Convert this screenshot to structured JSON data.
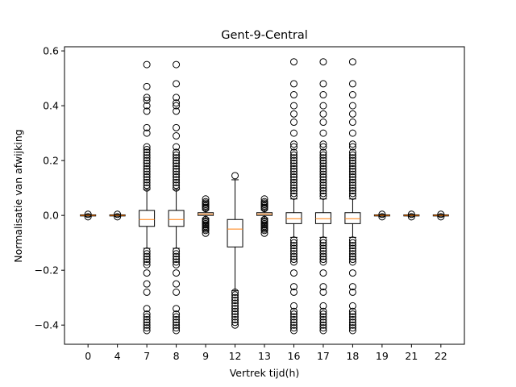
{
  "chart_data": {
    "type": "boxplot",
    "title": "Gent-9-Central",
    "xlabel": "Vertrek tijd(h)",
    "ylabel": "Normalisatie van afwijking",
    "ylim": [
      -0.47,
      0.615
    ],
    "yticks": [
      -0.4,
      -0.2,
      0.0,
      0.2,
      0.4,
      0.6
    ],
    "ytick_labels": [
      "−0.4",
      "−0.2",
      "0.0",
      "0.2",
      "0.4",
      "0.6"
    ],
    "grid": false,
    "categories": [
      "0",
      "4",
      "7",
      "8",
      "9",
      "12",
      "13",
      "16",
      "17",
      "18",
      "19",
      "21",
      "22"
    ],
    "boxes": [
      {
        "q1": -0.002,
        "median": 0.0,
        "q3": 0.002,
        "whislo": -0.003,
        "whishi": 0.003,
        "fliers": [
          -0.005,
          0.004
        ]
      },
      {
        "q1": -0.002,
        "median": 0.0,
        "q3": 0.002,
        "whislo": -0.003,
        "whishi": 0.003,
        "fliers": [
          -0.005,
          0.004
        ]
      },
      {
        "q1": -0.04,
        "median": -0.015,
        "q3": 0.018,
        "whislo": -0.12,
        "whishi": 0.095,
        "fliers": [
          0.55,
          0.47,
          0.43,
          0.42,
          0.4,
          0.38,
          0.32,
          0.3,
          0.25,
          0.24,
          0.23,
          0.22,
          0.21,
          0.2,
          0.19,
          0.18,
          0.17,
          0.16,
          0.15,
          0.14,
          0.13,
          0.12,
          0.11,
          0.1,
          -0.13,
          -0.14,
          -0.15,
          -0.16,
          -0.17,
          -0.18,
          -0.21,
          -0.25,
          -0.28,
          -0.34,
          -0.36,
          -0.37,
          -0.38,
          -0.39,
          -0.4,
          -0.41,
          -0.42
        ]
      },
      {
        "q1": -0.04,
        "median": -0.015,
        "q3": 0.018,
        "whislo": -0.12,
        "whishi": 0.095,
        "fliers": [
          0.55,
          0.48,
          0.43,
          0.41,
          0.4,
          0.38,
          0.32,
          0.29,
          0.25,
          0.23,
          0.22,
          0.21,
          0.2,
          0.19,
          0.18,
          0.17,
          0.16,
          0.15,
          0.14,
          0.13,
          0.12,
          0.11,
          0.1,
          -0.13,
          -0.14,
          -0.15,
          -0.16,
          -0.17,
          -0.18,
          -0.21,
          -0.25,
          -0.28,
          -0.34,
          -0.36,
          -0.37,
          -0.38,
          -0.39,
          -0.4,
          -0.41,
          -0.42
        ]
      },
      {
        "q1": 0.0,
        "median": 0.005,
        "q3": 0.01,
        "whislo": -0.01,
        "whishi": 0.02,
        "fliers": [
          0.06,
          0.05,
          0.045,
          0.04,
          0.035,
          0.03,
          0.025,
          -0.015,
          -0.02,
          -0.025,
          -0.03,
          -0.035,
          -0.04,
          -0.045,
          -0.05,
          -0.055,
          -0.065
        ]
      },
      {
        "q1": -0.115,
        "median": -0.05,
        "q3": -0.015,
        "whislo": -0.275,
        "whishi": 0.13,
        "fliers": [
          0.145,
          -0.28,
          -0.29,
          -0.3,
          -0.31,
          -0.32,
          -0.33,
          -0.34,
          -0.35,
          -0.36,
          -0.37,
          -0.38,
          -0.39,
          -0.4
        ]
      },
      {
        "q1": 0.0,
        "median": 0.005,
        "q3": 0.01,
        "whislo": -0.01,
        "whishi": 0.02,
        "fliers": [
          0.06,
          0.05,
          0.045,
          0.04,
          0.035,
          0.03,
          0.025,
          -0.015,
          -0.02,
          -0.025,
          -0.03,
          -0.035,
          -0.04,
          -0.045,
          -0.05,
          -0.055,
          -0.065
        ]
      },
      {
        "q1": -0.03,
        "median": -0.012,
        "q3": 0.01,
        "whislo": -0.08,
        "whishi": 0.06,
        "fliers": [
          0.56,
          0.48,
          0.44,
          0.4,
          0.37,
          0.34,
          0.3,
          0.26,
          0.25,
          0.23,
          0.22,
          0.21,
          0.2,
          0.19,
          0.18,
          0.17,
          0.16,
          0.15,
          0.14,
          0.13,
          0.12,
          0.11,
          0.1,
          0.09,
          0.08,
          0.07,
          -0.09,
          -0.1,
          -0.11,
          -0.12,
          -0.13,
          -0.14,
          -0.15,
          -0.16,
          -0.17,
          -0.21,
          -0.26,
          -0.28,
          -0.33,
          -0.35,
          -0.36,
          -0.37,
          -0.38,
          -0.39,
          -0.4,
          -0.41,
          -0.42
        ]
      },
      {
        "q1": -0.03,
        "median": -0.012,
        "q3": 0.01,
        "whislo": -0.08,
        "whishi": 0.06,
        "fliers": [
          0.56,
          0.48,
          0.44,
          0.4,
          0.37,
          0.34,
          0.3,
          0.26,
          0.25,
          0.23,
          0.22,
          0.21,
          0.2,
          0.19,
          0.18,
          0.17,
          0.16,
          0.15,
          0.14,
          0.13,
          0.12,
          0.11,
          0.1,
          0.09,
          0.08,
          0.07,
          -0.09,
          -0.1,
          -0.11,
          -0.12,
          -0.13,
          -0.14,
          -0.15,
          -0.16,
          -0.17,
          -0.21,
          -0.26,
          -0.28,
          -0.33,
          -0.35,
          -0.36,
          -0.37,
          -0.38,
          -0.39,
          -0.4,
          -0.41,
          -0.42
        ]
      },
      {
        "q1": -0.03,
        "median": -0.012,
        "q3": 0.01,
        "whislo": -0.08,
        "whishi": 0.06,
        "fliers": [
          0.56,
          0.48,
          0.44,
          0.4,
          0.37,
          0.34,
          0.3,
          0.26,
          0.25,
          0.23,
          0.22,
          0.21,
          0.2,
          0.19,
          0.18,
          0.17,
          0.16,
          0.15,
          0.14,
          0.13,
          0.12,
          0.11,
          0.1,
          0.09,
          0.08,
          0.07,
          -0.09,
          -0.1,
          -0.11,
          -0.12,
          -0.13,
          -0.14,
          -0.15,
          -0.16,
          -0.17,
          -0.21,
          -0.26,
          -0.28,
          -0.33,
          -0.35,
          -0.36,
          -0.37,
          -0.38,
          -0.39,
          -0.4,
          -0.41,
          -0.42
        ]
      },
      {
        "q1": -0.002,
        "median": 0.0,
        "q3": 0.002,
        "whislo": -0.003,
        "whishi": 0.003,
        "fliers": [
          -0.005,
          0.004
        ]
      },
      {
        "q1": -0.002,
        "median": 0.0,
        "q3": 0.002,
        "whislo": -0.003,
        "whishi": 0.003,
        "fliers": [
          -0.005,
          0.004
        ]
      },
      {
        "q1": -0.002,
        "median": 0.0,
        "q3": 0.002,
        "whislo": -0.003,
        "whishi": 0.003,
        "fliers": [
          -0.005,
          0.004
        ]
      }
    ],
    "colors": {
      "box": "#000000",
      "median": "#ff7f0e",
      "flier": "#000000",
      "background": "#ffffff"
    }
  }
}
